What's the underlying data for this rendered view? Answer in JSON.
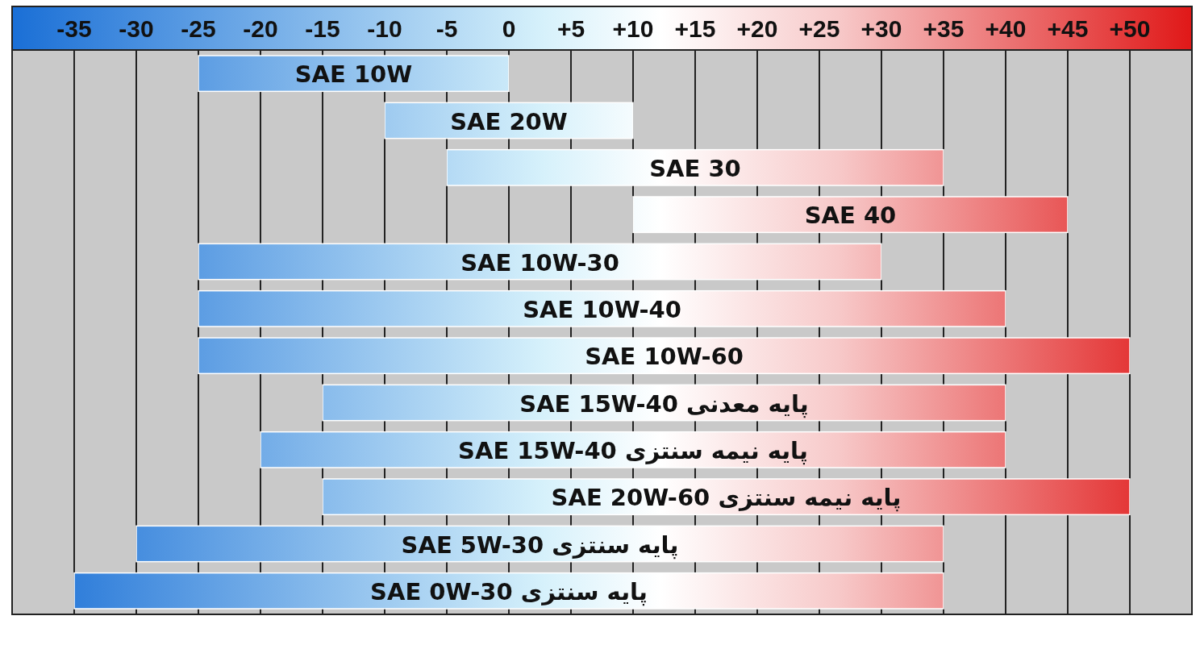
{
  "chart_data": {
    "type": "bar",
    "orientation": "horizontal",
    "grid": "x",
    "categories": [
      "SAE 10W",
      "SAE 20W",
      "SAE 30",
      "SAE 40",
      "SAE 10W-30",
      "SAE 10W-40",
      "SAE 10W-60",
      "SAE 15W-40 پایه معدنی",
      "SAE 15W-40 پایه نیمه سنتزی",
      "SAE 20W-60 پایه نیمه سنتزی",
      "SAE 5W-30 پایه سنتزی",
      "SAE 0W-30 پایه سنتزی"
    ],
    "base": [
      -25,
      -10,
      -5,
      10,
      -25,
      -25,
      -25,
      -15,
      -20,
      -15,
      -30,
      -35
    ],
    "values": [
      25,
      20,
      40,
      35,
      55,
      65,
      75,
      55,
      60,
      65,
      65,
      70
    ],
    "xlim": [
      -40,
      55
    ],
    "xticks": [
      -35,
      -30,
      -25,
      -20,
      -15,
      -10,
      -5,
      0,
      {
        "value": 5,
        "label": "+5"
      },
      {
        "value": 10,
        "label": "+10"
      },
      {
        "value": 15,
        "label": "+15"
      },
      {
        "value": 20,
        "label": "+20"
      },
      {
        "value": 25,
        "label": "+25"
      },
      {
        "value": 30,
        "label": "+30"
      },
      {
        "value": 35,
        "label": "+35"
      },
      {
        "value": 40,
        "label": "+40"
      },
      {
        "value": 45,
        "label": "+45"
      },
      {
        "value": 50,
        "label": "+50"
      }
    ]
  }
}
